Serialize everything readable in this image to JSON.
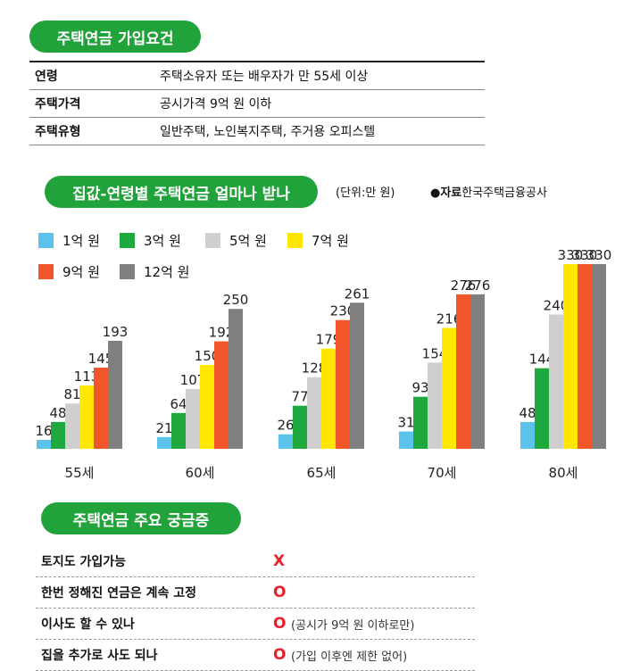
{
  "section1": {
    "title": "주택연금 가입요건",
    "rows": [
      {
        "key": "연령",
        "value": "주택소유자 또는 배우자가 만 55세 이상"
      },
      {
        "key": "주택가격",
        "value": "공시가격 9억 원 이하"
      },
      {
        "key": "주택유형",
        "value": "일반주택, 노인복지주택, 주거용 오피스텔"
      }
    ]
  },
  "section2": {
    "title": "집값-연령별 주택연금 얼마나 받나",
    "unit": "(단위:만 원)",
    "source_label": "●자료",
    "source_name": "한국주택금융공사"
  },
  "chart_data": {
    "type": "bar",
    "title": "집값-연령별 주택연금 얼마나 받나",
    "categories": [
      "55세",
      "60세",
      "65세",
      "70세",
      "80세"
    ],
    "series": [
      {
        "name": "1억 원",
        "color": "#5bc3ea",
        "values": [
          16,
          21,
          26,
          31,
          48
        ]
      },
      {
        "name": "3억 원",
        "color": "#1fa83e",
        "values": [
          48,
          64,
          77,
          93,
          144
        ]
      },
      {
        "name": "5억 원",
        "color": "#cfcfcf",
        "values": [
          81,
          107,
          128,
          154,
          240
        ]
      },
      {
        "name": "7억 원",
        "color": "#ffe700",
        "values": [
          113,
          150,
          179,
          216,
          330
        ]
      },
      {
        "name": "9억 원",
        "color": "#f0562a",
        "values": [
          145,
          192,
          230,
          276,
          330
        ]
      },
      {
        "name": "12억 원",
        "color": "#7f7f7f",
        "values": [
          193,
          250,
          261,
          276,
          330
        ]
      }
    ],
    "ylabel": "만 원",
    "ylim": [
      0,
      330
    ],
    "legend": "top-left"
  },
  "section3": {
    "title": "주택연금 주요 궁금증",
    "rows": [
      {
        "q": "토지도 가입가능",
        "a": "X",
        "note": ""
      },
      {
        "q": "한번 정해진 연금은 계속 고정",
        "a": "O",
        "note": ""
      },
      {
        "q": "이사도 할 수 있나",
        "a": "O",
        "note": "(공시가 9억 원 이하로만)"
      },
      {
        "q": "집을 추가로 사도 되나",
        "a": "O",
        "note": "(가입 이후엔 제한 없어)"
      }
    ]
  }
}
